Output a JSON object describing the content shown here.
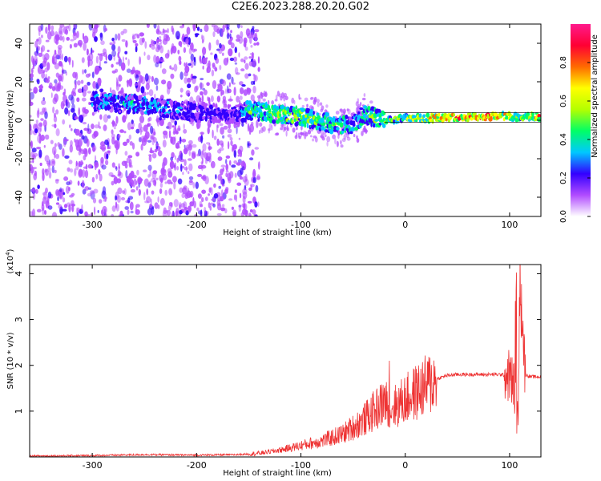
{
  "title": "C2E6.2023.288.20.20.G02",
  "chart_data": [
    {
      "type": "heatmap",
      "xlabel": "Height of straight line (km)",
      "ylabel": "Frequency (Hz)",
      "xlim": [
        -360,
        130
      ],
      "ylim": [
        -50,
        50
      ],
      "xticks": [
        -300,
        -200,
        -100,
        0,
        100
      ],
      "yticks": [
        -40,
        -20,
        0,
        20,
        40
      ],
      "colorbar": {
        "label": "Normalized spectral amplitude",
        "range": [
          0.0,
          1.0
        ],
        "ticks": [
          "0.0",
          "0.2",
          "0.4",
          "0.6",
          "0.8"
        ],
        "colors": [
          "#ffffff",
          "#b14cff",
          "#3300ff",
          "#00c8ff",
          "#00ff66",
          "#b4ff00",
          "#ffff00",
          "#ff6a00",
          "#ff0033",
          "#ff1a8c"
        ]
      },
      "ridge": {
        "x": [
          -300,
          -250,
          -200,
          -160,
          -150,
          -100,
          -70,
          -50,
          -40,
          -20,
          0,
          20,
          50,
          80,
          100,
          110,
          130
        ],
        "y": [
          10,
          8,
          4,
          3,
          5,
          2,
          -2,
          -3,
          3,
          0,
          1,
          1,
          1.5,
          2,
          2,
          1,
          2
        ],
        "amplitude": [
          0.35,
          0.4,
          0.3,
          0.25,
          0.5,
          0.55,
          0.5,
          0.45,
          0.5,
          0.55,
          0.6,
          0.75,
          0.85,
          0.85,
          0.8,
          0.5,
          0.85
        ]
      },
      "grid": false
    },
    {
      "type": "line",
      "xlabel": "Height of straight line (km)",
      "ylabel": "SNR (10 * v/v)",
      "yscale_label": "(x10",
      "yscale_exp": "4",
      "yscale_suffix": ")",
      "xlim": [
        -360,
        130
      ],
      "ylim": [
        0,
        4.2
      ],
      "xticks": [
        -300,
        -200,
        -100,
        0,
        100
      ],
      "yticks": [
        1,
        2,
        3,
        4
      ],
      "series": [
        {
          "color": "#ee3333",
          "x": [
            -360,
            -300,
            -250,
            -200,
            -160,
            -140,
            -120,
            -100,
            -80,
            -60,
            -40,
            -30,
            -20,
            -15,
            -10,
            0,
            10,
            20,
            30,
            40,
            50,
            70,
            90,
            100,
            105,
            108,
            110,
            115,
            120,
            130
          ],
          "y": [
            0.02,
            0.03,
            0.05,
            0.04,
            0.05,
            0.08,
            0.15,
            0.25,
            0.35,
            0.5,
            0.8,
            1.0,
            1.2,
            1.15,
            1.1,
            1.25,
            1.4,
            1.55,
            1.7,
            1.78,
            1.8,
            1.8,
            1.8,
            1.78,
            1.5,
            0.8,
            4.0,
            1.8,
            1.75,
            1.75
          ]
        }
      ],
      "grid": false
    }
  ]
}
